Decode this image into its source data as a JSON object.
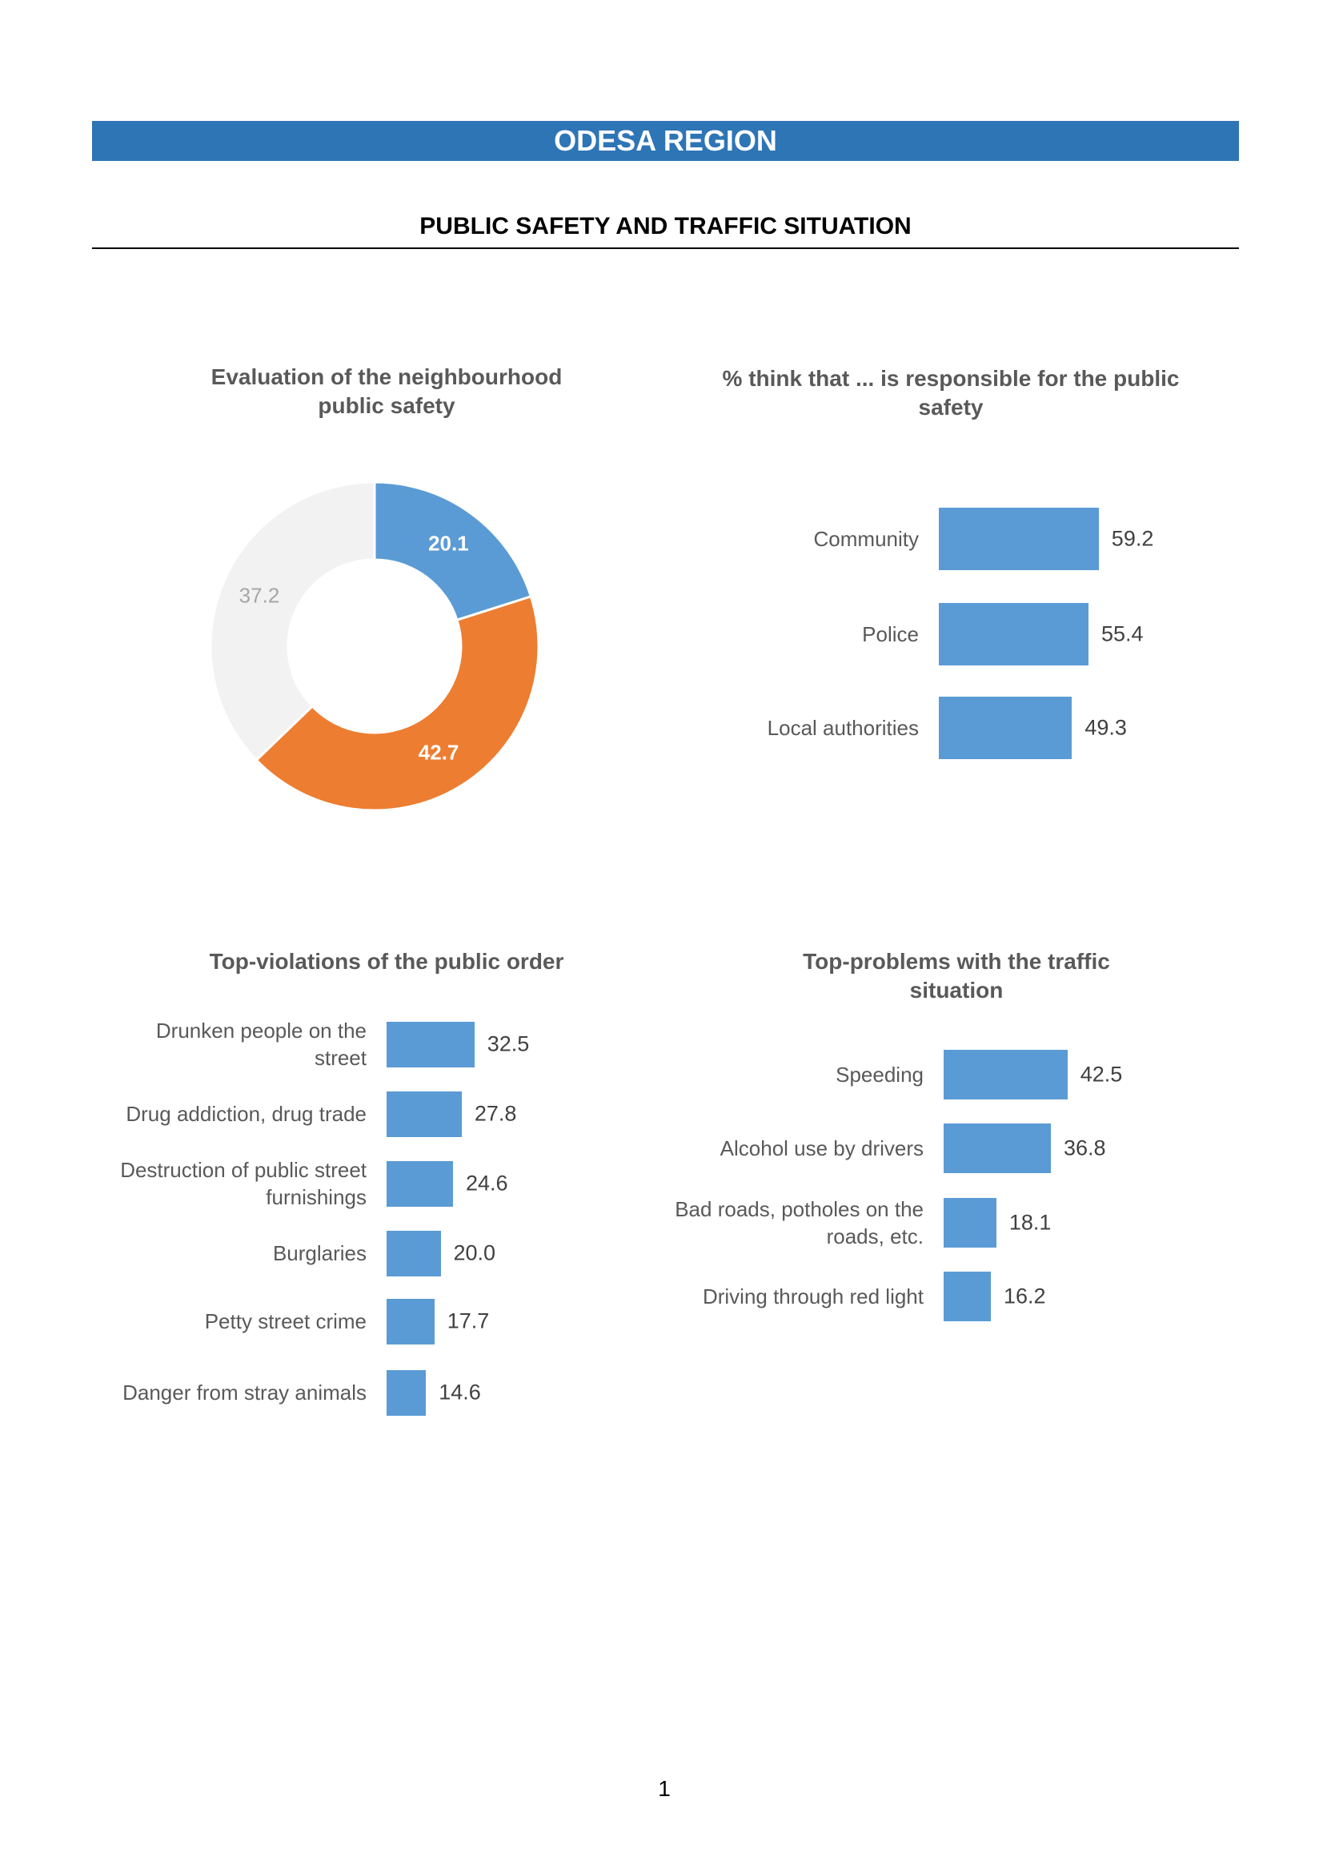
{
  "header": {
    "title": "ODESA REGION"
  },
  "section_title": "PUBLIC SAFETY AND TRAFFIC SITUATION",
  "page_number": "1",
  "chart_data": [
    {
      "type": "donut",
      "title": "Evaluation of the neighbourhood public safety",
      "values": [
        20.1,
        42.7,
        37.2
      ],
      "colors": [
        "#5b9bd5",
        "#ed7d31",
        "#f2f2f2"
      ]
    },
    {
      "type": "bar",
      "horizontal": true,
      "title": "% think that ... is responsible for the public safety",
      "categories": [
        "Community",
        "Police",
        "Local authorities"
      ],
      "values": [
        59.2,
        55.4,
        49.3
      ],
      "color": "#5b9bd5"
    },
    {
      "type": "bar",
      "horizontal": true,
      "title": "Top-violations of the public order",
      "categories": [
        "Drunken people on the street",
        "Drug addiction, drug trade",
        "Destruction of public street furnishings",
        "Burglaries",
        "Petty street crime",
        "Danger from stray animals"
      ],
      "values": [
        32.5,
        27.8,
        24.6,
        20.0,
        17.7,
        14.6
      ],
      "value_labels": [
        "32.5",
        "27.8",
        "24.6",
        "20.0",
        "17.7",
        "14.6"
      ],
      "color": "#5b9bd5"
    },
    {
      "type": "bar",
      "horizontal": true,
      "title": "Top-problems with the traffic situation",
      "categories": [
        "Speeding",
        "Alcohol use by drivers",
        "Bad roads, potholes on the roads, etc.",
        "Driving through red light"
      ],
      "values": [
        42.5,
        36.8,
        18.1,
        16.2
      ],
      "color": "#5b9bd5"
    }
  ]
}
